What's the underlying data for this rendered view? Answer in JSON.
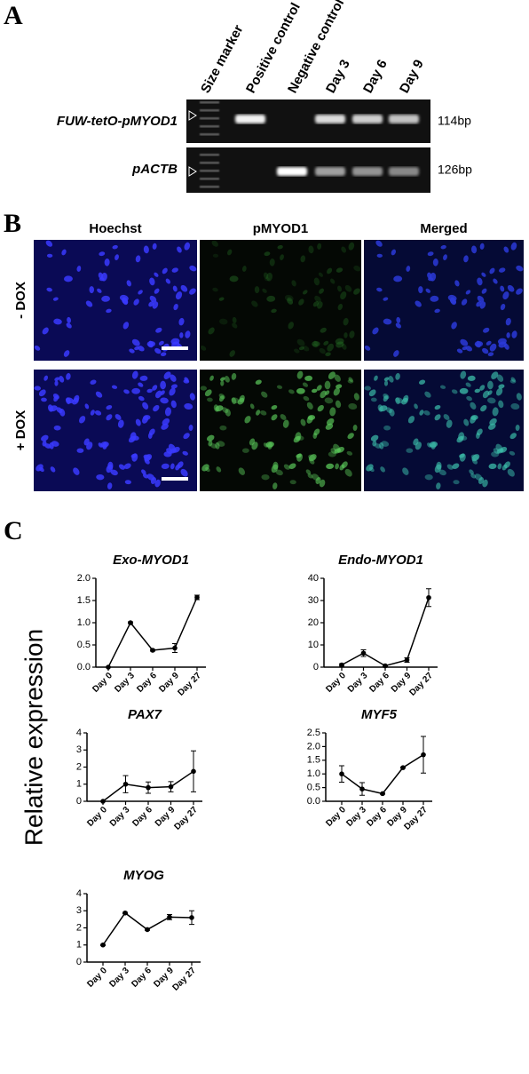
{
  "panel_a": {
    "label": "A"
  },
  "gel": {
    "lanes": [
      "Size marker",
      "Positive control",
      "Negative control",
      "Day 3",
      "Day 6",
      "Day 9"
    ],
    "rows": [
      {
        "label": "FUW-tetO-pMYOD1",
        "size": "114bp"
      },
      {
        "label": "pACTB",
        "size": "126bp"
      }
    ]
  },
  "panel_b": {
    "label": "B"
  },
  "microscopy": {
    "columns": [
      "Hoechst",
      "pMYOD1",
      "Merged"
    ],
    "rows": [
      "- DOX",
      "+ DOX"
    ]
  },
  "panel_c": {
    "label": "C",
    "y_label": "Relative expression"
  },
  "chart_data": [
    {
      "type": "line",
      "title": "Exo-MYOD1",
      "categories": [
        "Day 0",
        "Day 3",
        "Day 6",
        "Day 9",
        "Day 27"
      ],
      "values": [
        0,
        1.0,
        0.38,
        0.43,
        1.57
      ],
      "errors": [
        0,
        0.02,
        0.02,
        0.1,
        0.05
      ],
      "color": "#000000",
      "ylim": [
        0,
        2
      ],
      "yticks": [
        {
          "value": 0,
          "label": "0.0"
        },
        {
          "value": 0.5,
          "label": "0.5"
        },
        {
          "value": 1,
          "label": "1.0"
        },
        {
          "value": 1.5,
          "label": "1.5"
        },
        {
          "value": 2,
          "label": "2.0"
        }
      ]
    },
    {
      "type": "line",
      "title": "Endo-MYOD1",
      "categories": [
        "Day 0",
        "Day 3",
        "Day 6",
        "Day 9",
        "Day 27"
      ],
      "values": [
        1,
        6.3,
        0.6,
        3.2,
        31.3
      ],
      "errors": [
        0.5,
        1.5,
        0.3,
        1,
        4
      ],
      "color": "#000000",
      "ylim": [
        0,
        40
      ],
      "yticks": [
        0,
        10,
        20,
        30,
        40
      ]
    },
    {
      "type": "line",
      "title": "PAX7",
      "categories": [
        "Day 0",
        "Day 3",
        "Day 6",
        "Day 9",
        "Day 27"
      ],
      "values": [
        0,
        1.0,
        0.8,
        0.85,
        1.75
      ],
      "errors": [
        0,
        0.5,
        0.33,
        0.3,
        1.2
      ],
      "color": "#000000",
      "ylim": [
        0,
        4
      ],
      "yticks": [
        0,
        1,
        2,
        3,
        4
      ]
    },
    {
      "type": "line",
      "title": "MYF5",
      "categories": [
        "Day 0",
        "Day 3",
        "Day 6",
        "Day 9",
        "Day 27"
      ],
      "values": [
        1.0,
        0.45,
        0.28,
        1.23,
        1.7
      ],
      "errors": [
        0.3,
        0.23,
        0.02,
        0.02,
        0.67
      ],
      "color": "#000000",
      "ylim": [
        0,
        2.5
      ],
      "yticks": [
        {
          "value": 0,
          "label": "0.0"
        },
        {
          "value": 0.5,
          "label": "0.5"
        },
        {
          "value": 1,
          "label": "1.0"
        },
        {
          "value": 1.5,
          "label": "1.5"
        },
        {
          "value": 2,
          "label": "2.0"
        },
        {
          "value": 2.5,
          "label": "2.5"
        }
      ]
    },
    {
      "type": "line",
      "title": "MYOG",
      "categories": [
        "Day 0",
        "Day 3",
        "Day 6",
        "Day 9",
        "Day 27"
      ],
      "values": [
        1,
        2.87,
        1.9,
        2.63,
        2.6
      ],
      "errors": [
        0.03,
        0.04,
        0.04,
        0.15,
        0.4
      ],
      "color": "#000000",
      "ylim": [
        0,
        4
      ],
      "yticks": [
        0,
        1,
        2,
        3,
        4
      ]
    }
  ]
}
